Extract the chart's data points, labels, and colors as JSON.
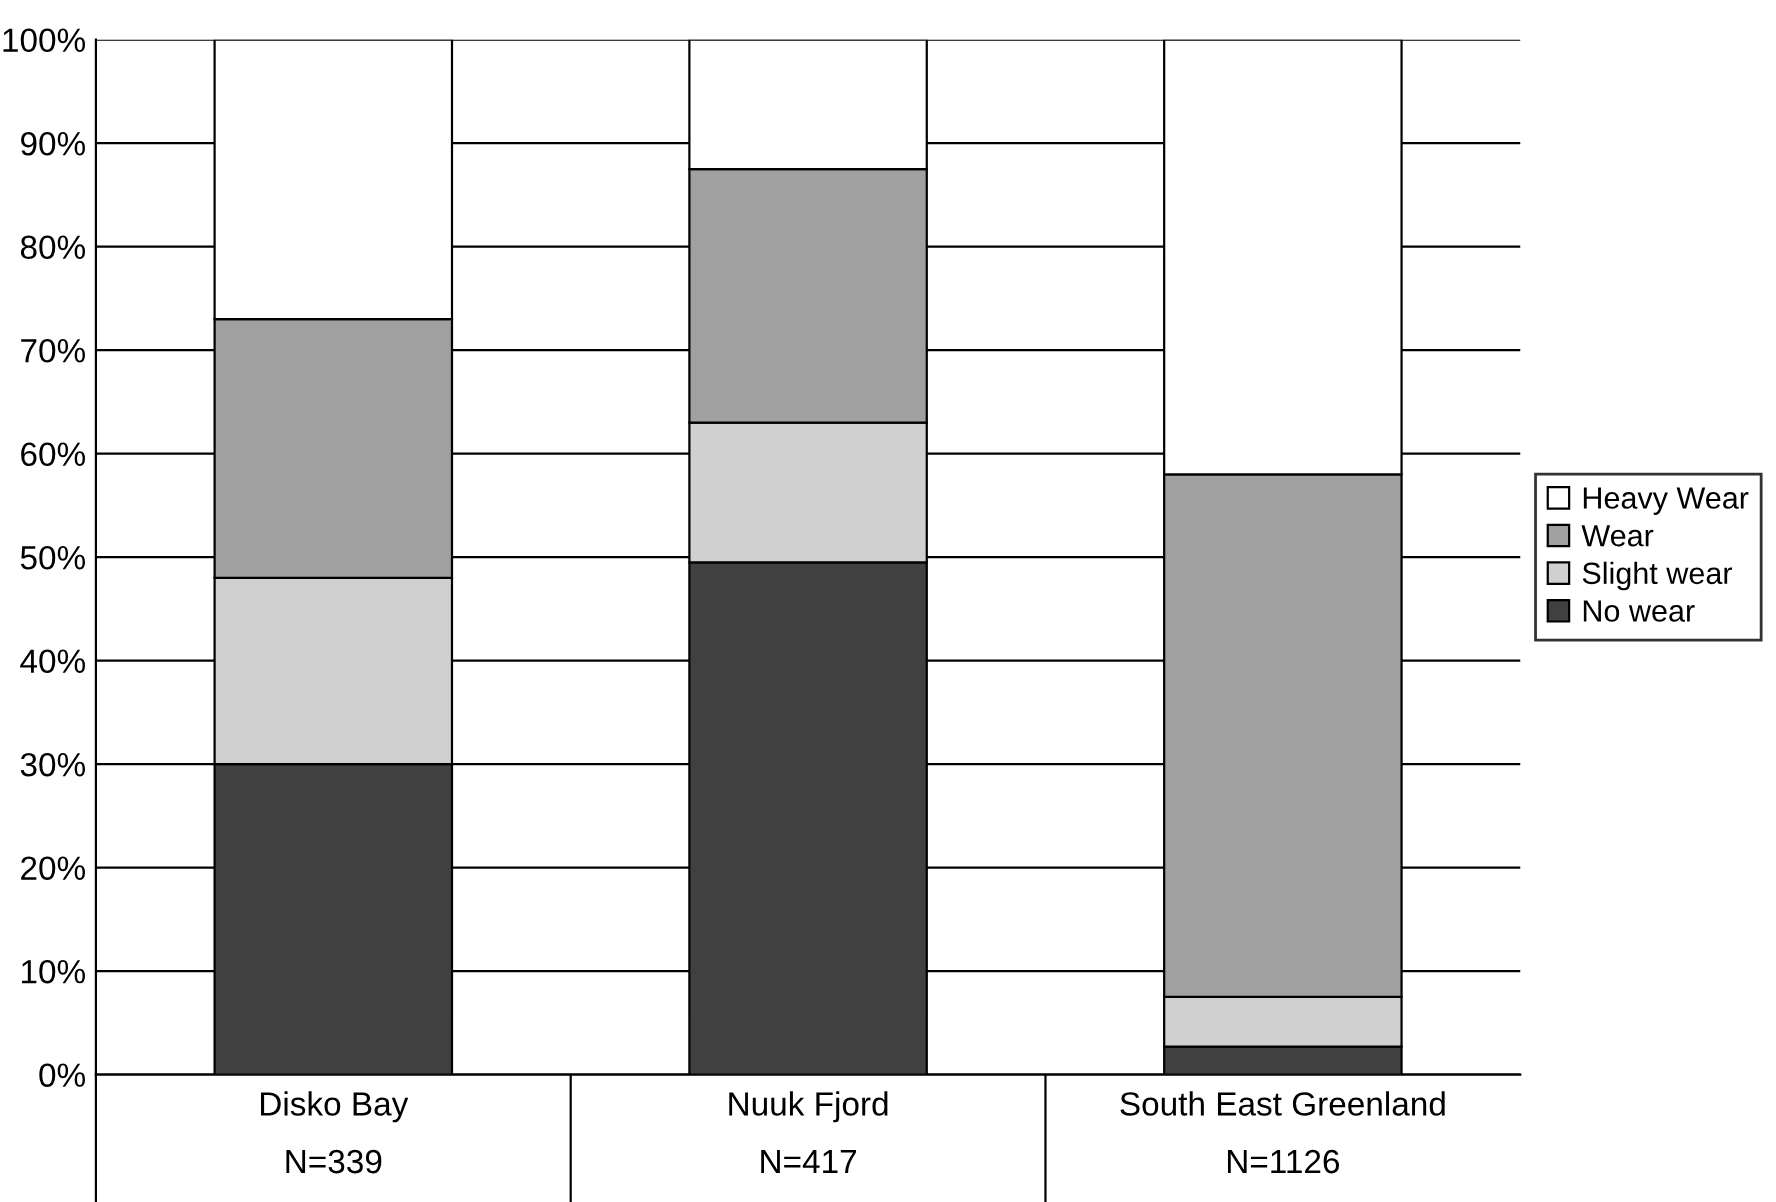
{
  "chart_data": {
    "type": "bar",
    "stacked": true,
    "categories": [
      "Disko Bay\nN=339",
      "Nuuk Fjord\nN=417",
      "South East Greenland\nN=1126"
    ],
    "series": [
      {
        "name": "No wear",
        "color": "#404040",
        "values": [
          30,
          49.5,
          2.7
        ]
      },
      {
        "name": "Slight wear",
        "color": "#d0d0d0",
        "values": [
          18,
          13.5,
          4.8
        ]
      },
      {
        "name": "Wear",
        "color": "#a0a0a0",
        "values": [
          25,
          24.5,
          50.5
        ]
      },
      {
        "name": "Heavy Wear",
        "color": "#ffffff",
        "values": [
          27,
          12.5,
          42
        ]
      }
    ],
    "ylim": [
      0,
      100
    ],
    "yticks": [
      {
        "value": 0,
        "label": "0%"
      },
      {
        "value": 10,
        "label": "10%"
      },
      {
        "value": 20,
        "label": "20%"
      },
      {
        "value": 30,
        "label": "30%"
      },
      {
        "value": 40,
        "label": "40%"
      },
      {
        "value": 50,
        "label": "50%"
      },
      {
        "value": 60,
        "label": "60%"
      },
      {
        "value": 70,
        "label": "70%"
      },
      {
        "value": 80,
        "label": "80%"
      },
      {
        "value": 90,
        "label": "90%"
      },
      {
        "value": 100,
        "label": "100%"
      }
    ],
    "grid": "y",
    "legend": "right"
  }
}
